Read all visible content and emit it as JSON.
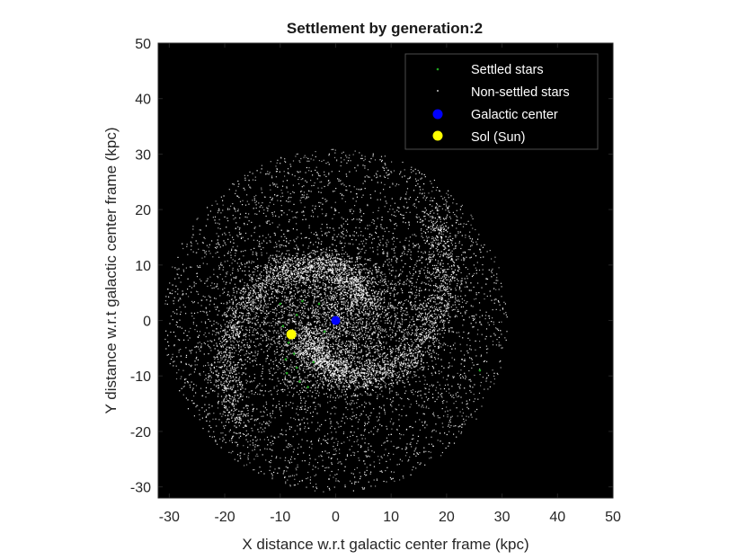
{
  "chart_data": {
    "type": "scatter",
    "title": "Settlement by generation:2",
    "xlabel": "X distance w.r.t galactic center frame (kpc)",
    "ylabel": "Y distance w.r.t galactic center frame (kpc)",
    "xlim": [
      -32,
      50
    ],
    "ylim": [
      -32,
      50
    ],
    "xticks": [
      -30,
      -20,
      -10,
      0,
      10,
      20,
      30,
      40,
      50
    ],
    "yticks": [
      -30,
      -20,
      -10,
      0,
      10,
      20,
      30,
      40,
      50
    ],
    "xtick_labels": [
      "-30",
      "-20",
      "-10",
      "0",
      "10",
      "20",
      "30",
      "40",
      "50"
    ],
    "ytick_labels": [
      "-30",
      "-20",
      "-10",
      "0",
      "10",
      "20",
      "30",
      "40",
      "50"
    ],
    "background": "#000000",
    "grid": false,
    "legend_position": "top-right",
    "galaxy_radius_kpc": 31,
    "series": [
      {
        "name": "Settled stars",
        "color": "#1fa51f",
        "marker": "dot",
        "points": [
          [
            -8,
            -2.5
          ],
          [
            -8.5,
            -4
          ],
          [
            -7.5,
            -6
          ],
          [
            -9,
            -7
          ],
          [
            -7,
            -8.5
          ],
          [
            -8.8,
            -9.5
          ],
          [
            -6.5,
            -11
          ],
          [
            -5,
            -12
          ],
          [
            -7,
            1
          ],
          [
            -6,
            3.5
          ],
          [
            -9.5,
            -1
          ],
          [
            -4,
            -7.5
          ],
          [
            -10,
            3
          ],
          [
            -3,
            3
          ],
          [
            -2,
            -2
          ],
          [
            26,
            -9
          ]
        ]
      },
      {
        "name": "Non-settled stars",
        "color": "#ffffff",
        "marker": "dot",
        "points": "dense field filling a disc of radius ~31 kpc centered on (0,0), brightest in the central bulge and spiral arms"
      },
      {
        "name": "Galactic center",
        "color": "#0000ff",
        "marker": "circle",
        "points": [
          [
            0,
            0
          ]
        ]
      },
      {
        "name": "Sol (Sun)",
        "color": "#ffff00",
        "marker": "circle",
        "points": [
          [
            -8,
            -2.5
          ]
        ]
      }
    ]
  }
}
